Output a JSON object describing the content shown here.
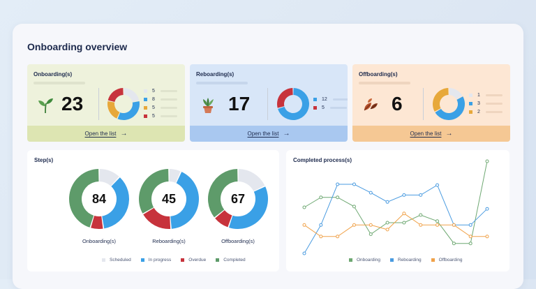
{
  "page": {
    "title": "Onboarding overview"
  },
  "colors": {
    "scheduled": "#e4e7ee",
    "in_progress": "#3aa0e6",
    "overdue": "#c7333c",
    "completed": "#5e9b6a",
    "orange": "#e7a83a",
    "reboarding_line": "#4a9be0",
    "offboarding_line": "#f0a24a",
    "onboarding_line": "#6ea872"
  },
  "cards": [
    {
      "key": "onboarding",
      "title": "Onboarding(s)",
      "count": "23",
      "icon": "sprout-icon",
      "bg": "#eef2dc",
      "foot_bg": "#dde5b2",
      "bar": "#dfe3cd",
      "segments": [
        {
          "label": "5",
          "value": 5,
          "color": "#e4e7ee"
        },
        {
          "label": "8",
          "value": 8,
          "color": "#3aa0e6"
        },
        {
          "label": "5",
          "value": 5,
          "color": "#e7a83a"
        },
        {
          "label": "5",
          "value": 5,
          "color": "#c7333c"
        }
      ],
      "link": "Open the list"
    },
    {
      "key": "reboarding",
      "title": "Reboarding(s)",
      "count": "17",
      "icon": "potted-plant-icon",
      "bg": "#d8e6f8",
      "foot_bg": "#a9c8f0",
      "bar": "#c6d6ec",
      "segments": [
        {
          "label": "12",
          "value": 12,
          "color": "#3aa0e6"
        },
        {
          "label": "5",
          "value": 5,
          "color": "#c7333c"
        }
      ],
      "link": "Open the list"
    },
    {
      "key": "offboarding",
      "title": "Offboarding(s)",
      "count": "6",
      "icon": "falling-leaves-icon",
      "bg": "#fde7d4",
      "foot_bg": "#f5c894",
      "bar": "#efd5bf",
      "segments": [
        {
          "label": "1",
          "value": 1,
          "color": "#e4e7ee"
        },
        {
          "label": "3",
          "value": 3,
          "color": "#3aa0e6"
        },
        {
          "label": "2",
          "value": 2,
          "color": "#e7a83a"
        }
      ],
      "link": "Open the list"
    }
  ],
  "steps": {
    "title": "Step(s)",
    "legend": [
      "Scheduled",
      "In progress",
      "Overdue",
      "Completed"
    ],
    "donuts": [
      {
        "label": "Onboarding(s)",
        "total": "84",
        "values": [
          10,
          30,
          6,
          38
        ]
      },
      {
        "label": "Reboarding(s)",
        "total": "45",
        "values": [
          3,
          19,
          8,
          15
        ]
      },
      {
        "label": "Offboarding(s)",
        "total": "67",
        "values": [
          12,
          25,
          6,
          24
        ]
      }
    ]
  },
  "completed": {
    "title": "Completed process(s)"
  },
  "chart_data": {
    "type": "line",
    "title": "Completed process(s)",
    "xlabel": "",
    "ylabel": "",
    "x": [
      1,
      2,
      3,
      4,
      5,
      6,
      7,
      8,
      9,
      10,
      11,
      12
    ],
    "ylim": [
      0,
      12
    ],
    "grid": false,
    "legend": "bottom",
    "series": [
      {
        "name": "Onboarding",
        "color": "#6ea872",
        "values": [
          6.0,
          7.3,
          7.3,
          6.1,
          2.5,
          4.0,
          4.0,
          5.0,
          4.2,
          1.3,
          1.3,
          12.0
        ]
      },
      {
        "name": "Reboarding",
        "color": "#4a9be0",
        "values": [
          0.0,
          3.7,
          9.0,
          9.0,
          7.9,
          6.7,
          7.6,
          7.6,
          8.9,
          3.7,
          3.7,
          5.8
        ]
      },
      {
        "name": "Offboarding",
        "color": "#f0a24a",
        "values": [
          3.7,
          2.2,
          2.2,
          3.7,
          3.7,
          3.1,
          5.2,
          3.7,
          3.7,
          3.7,
          2.2,
          2.2
        ]
      }
    ]
  }
}
